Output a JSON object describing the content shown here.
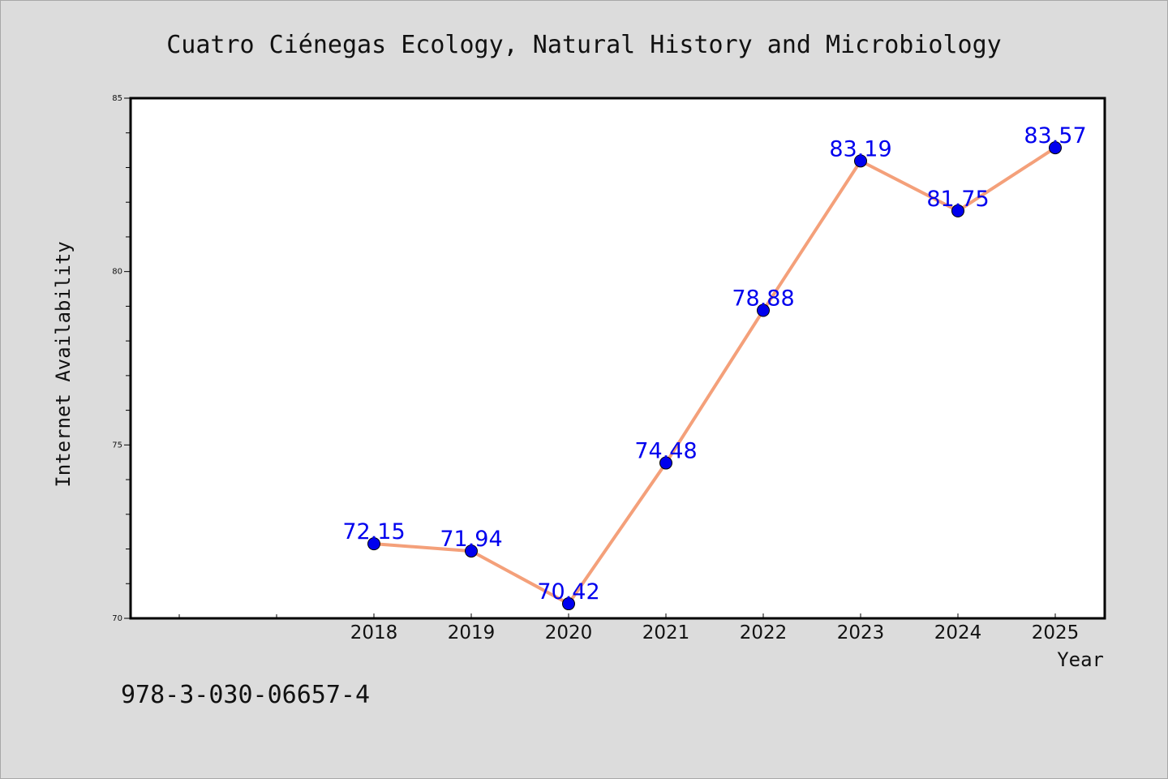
{
  "chart_data": {
    "type": "line",
    "title": "Cuatro Ciénegas Ecology, Natural History and Microbiology",
    "xlabel": "Year",
    "ylabel": "Internet Availability",
    "categories": [
      "2018",
      "2019",
      "2020",
      "2021",
      "2022",
      "2023",
      "2024",
      "2025"
    ],
    "series": [
      {
        "values": [
          72.15,
          71.94,
          70.42,
          74.48,
          78.88,
          83.19,
          81.75,
          83.57
        ],
        "line_color": "#f4a07a",
        "marker_color": "#0000ee",
        "label_color": "#0000ee"
      }
    ],
    "data_labels": [
      "72.15",
      "71.94",
      "70.42",
      "74.48",
      "78.88",
      "83.19",
      "81.75",
      "83.57"
    ],
    "ylim": [
      70,
      85
    ],
    "yticks": [
      {
        "value": 70,
        "label": "70"
      },
      {
        "value": 75,
        "label": "75"
      },
      {
        "value": 80,
        "label": "80"
      },
      {
        "value": 85,
        "label": "85"
      }
    ],
    "grid": false,
    "legend": "none"
  },
  "footer": {
    "isbn": "978-3-030-06657-4"
  }
}
